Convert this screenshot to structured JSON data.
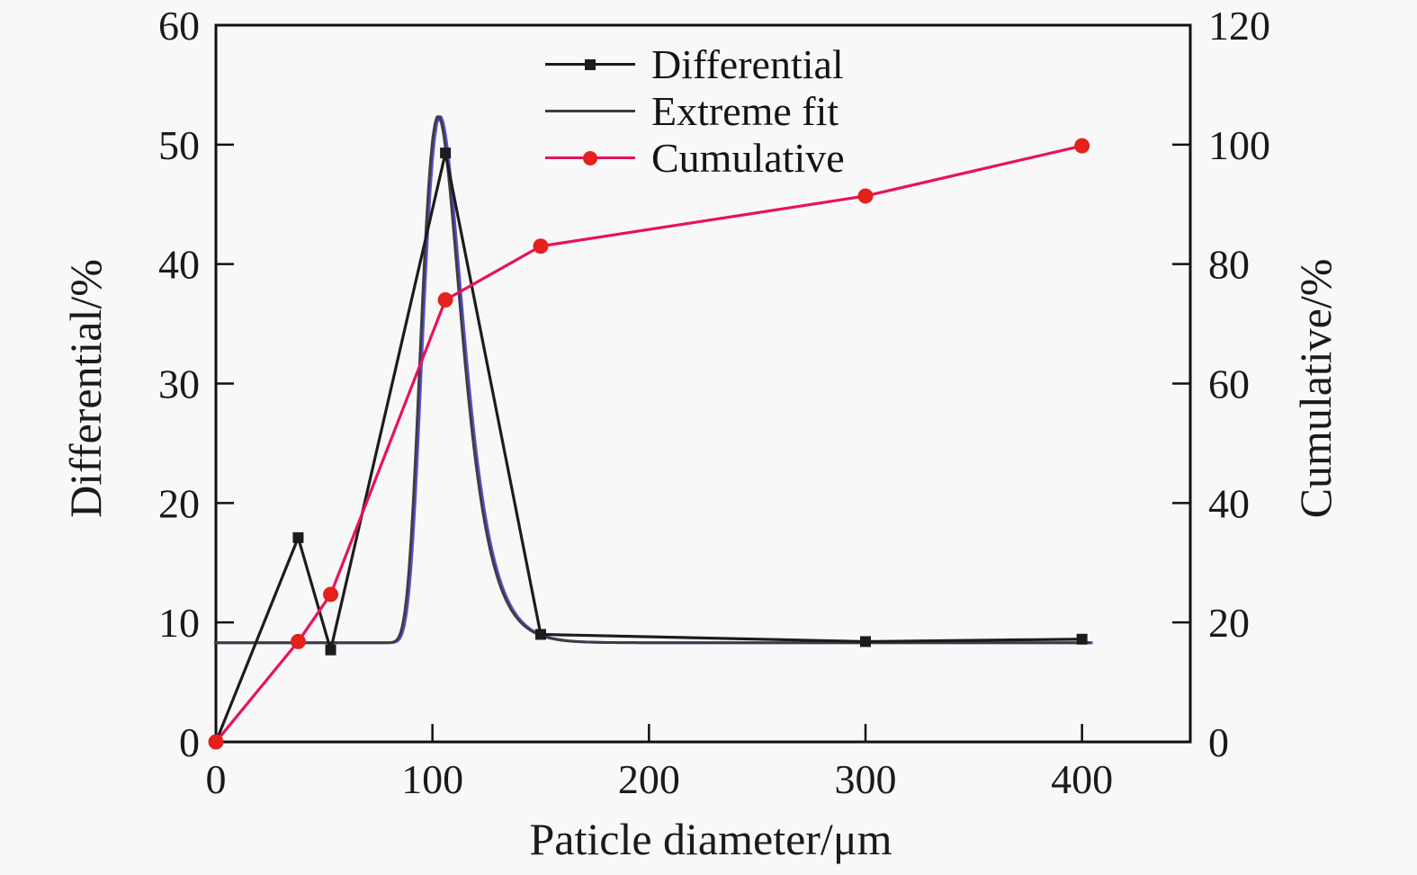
{
  "figure": {
    "background_color": "#f8f8f8",
    "axis_color": "#111111",
    "text_color": "#1a1a1a"
  },
  "chart_data": {
    "type": "line",
    "title": "",
    "xlabel": "Paticle diameter/μm",
    "ylabel_left": "Differential/%",
    "ylabel_right": "Cumulative/%",
    "x_range": [
      0,
      450
    ],
    "y_left_range": [
      0,
      60
    ],
    "y_right_range": [
      0,
      120
    ],
    "x_ticks": [
      "0",
      "100",
      "200",
      "300",
      "400"
    ],
    "x_tick_values": [
      0,
      100,
      200,
      300,
      400
    ],
    "y_left_ticks": [
      "0",
      "10",
      "20",
      "30",
      "40",
      "50",
      "60"
    ],
    "y_left_tick_values": [
      0,
      10,
      20,
      30,
      40,
      50,
      60
    ],
    "y_right_ticks": [
      "0",
      "20",
      "40",
      "60",
      "80",
      "100",
      "120"
    ],
    "y_right_tick_values": [
      0,
      20,
      40,
      60,
      80,
      100,
      120
    ],
    "grid": false,
    "legend_position": "top-center",
    "series": [
      {
        "name": "Differential",
        "axis": "left",
        "kind": "line+marker",
        "marker": "square",
        "color": "#1c1c1c",
        "marker_color": "#1c1c1c",
        "x": [
          0,
          38,
          53,
          106,
          150,
          300,
          400
        ],
        "y": [
          0,
          17.1,
          7.7,
          49.3,
          9.0,
          8.4,
          8.6
        ]
      },
      {
        "name": "Extreme fit",
        "axis": "left",
        "kind": "fit-curve",
        "color": "#3d3d44",
        "accent_color": "#5a4fcf",
        "fit": {
          "model": "extreme-gumbel",
          "y0": 8.3,
          "amplitude": 44.1,
          "center": 103.5,
          "width": 9,
          "x_min": 0,
          "x_max": 405,
          "peak_value": 52.4
        }
      },
      {
        "name": "Cumulative",
        "axis": "right",
        "kind": "line+marker",
        "marker": "circle",
        "color": "#e8125a",
        "marker_color": "#e4211c",
        "x": [
          0,
          38,
          53,
          106,
          150,
          300,
          400
        ],
        "y": [
          0,
          16.8,
          24.7,
          74.0,
          83.0,
          91.4,
          99.8
        ]
      }
    ]
  }
}
